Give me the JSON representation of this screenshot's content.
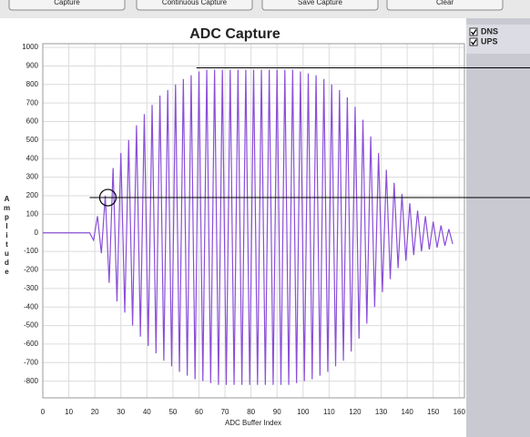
{
  "toolbar": {
    "buttons": [
      "Capture",
      "Continuous Capture",
      "Save Capture",
      "Clear"
    ]
  },
  "legend_entries": [
    {
      "label": "DNS",
      "color": "#2a1fd6",
      "checked": true
    },
    {
      "label": "UPS",
      "color": "#b8561a",
      "checked": true
    }
  ],
  "chart_data": {
    "type": "line",
    "title": "ADC Capture",
    "x_label": "ADC Buffer Index",
    "y_label": "Amplitude",
    "x": [
      0,
      17,
      18,
      19.5,
      21,
      22.5,
      24,
      25.5,
      27,
      28.5,
      30,
      31.5,
      33,
      34.5,
      36,
      37.5,
      39,
      40.5,
      42,
      43.5,
      45,
      46.5,
      48,
      49.5,
      51,
      52.5,
      54,
      55.5,
      57,
      58.5,
      60,
      61.5,
      63,
      64.5,
      66,
      67.5,
      69,
      70.5,
      72,
      73.5,
      75,
      76.5,
      78,
      79.5,
      81,
      82.5,
      84,
      85.5,
      87,
      88.5,
      90,
      91.5,
      93,
      94.5,
      96,
      97.5,
      99,
      100.5,
      102,
      103.5,
      105,
      106.5,
      108,
      109.5,
      111,
      112.5,
      114,
      115.5,
      117,
      118.5,
      120,
      121.5,
      123,
      124.5,
      126,
      127.5,
      129,
      130.5,
      132,
      133.5,
      135,
      136.5,
      138,
      139.5,
      141,
      142.5,
      144,
      145.5,
      147,
      148.5,
      150,
      151.5,
      153,
      154.5,
      156,
      157.5
    ],
    "series": [
      {
        "name": "DNS",
        "color": "#8a4fd8",
        "values": [
          0,
          0,
          0,
          -40,
          90,
          -110,
          200,
          -270,
          350,
          -370,
          430,
          -430,
          500,
          -500,
          580,
          -560,
          640,
          -610,
          690,
          -650,
          740,
          -690,
          770,
          -720,
          800,
          -750,
          830,
          -770,
          850,
          -790,
          870,
          -800,
          880,
          -810,
          880,
          -820,
          880,
          -820,
          880,
          -820,
          880,
          -820,
          880,
          -820,
          880,
          -820,
          880,
          -820,
          880,
          -820,
          880,
          -820,
          880,
          -820,
          880,
          -810,
          870,
          -800,
          860,
          -790,
          850,
          -770,
          830,
          -750,
          800,
          -720,
          770,
          -690,
          730,
          -640,
          680,
          -570,
          610,
          -490,
          520,
          -400,
          430,
          -320,
          340,
          -250,
          270,
          -190,
          210,
          -150,
          160,
          -120,
          120,
          -100,
          90,
          -90,
          60,
          -80,
          40,
          -70,
          20,
          -60
        ]
      }
    ],
    "xlim": [
      0,
      162
    ],
    "ylim": [
      -890,
      1020
    ],
    "xticks": [
      0,
      10,
      20,
      30,
      40,
      50,
      60,
      70,
      80,
      90,
      100,
      110,
      120,
      130,
      140,
      150,
      160
    ],
    "yticks": [
      -800,
      -700,
      -600,
      -500,
      -400,
      -300,
      -200,
      -100,
      0,
      100,
      200,
      300,
      400,
      500,
      600,
      700,
      800,
      900,
      1000
    ],
    "grid": true,
    "cursor_lines": [
      {
        "y": 890,
        "x_start": 59
      },
      {
        "y": 190,
        "x_start": 18
      }
    ],
    "cursor_marker": {
      "x": 25,
      "y": 190
    }
  }
}
